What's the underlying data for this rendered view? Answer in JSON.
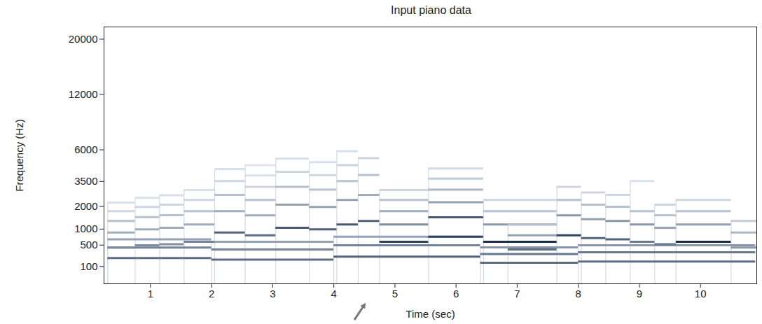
{
  "chart_data": {
    "type": "spectrogram",
    "title": "Input piano data",
    "x_label": "Time (sec)",
    "y_label": "Frequency (Hz)",
    "xlim": [
      0.24,
      10.92
    ],
    "xticks": [
      1,
      2,
      3,
      4,
      5,
      6,
      7,
      8,
      9,
      10
    ],
    "ylim": [
      0,
      22050
    ],
    "yticks": [
      100,
      500,
      1000,
      2000,
      3500,
      6000,
      12000,
      20000
    ],
    "notes": [
      {
        "start": 0.3,
        "end": 2.0,
        "partials": [
          [
            220,
            0.7
          ],
          [
            440,
            0.6
          ],
          [
            660,
            0.45
          ]
        ]
      },
      {
        "start": 2.0,
        "end": 4.0,
        "partials": [
          [
            196,
            0.7
          ],
          [
            392,
            0.6
          ],
          [
            588,
            0.45
          ]
        ]
      },
      {
        "start": 4.0,
        "end": 6.4,
        "partials": [
          [
            247,
            0.75
          ],
          [
            494,
            0.6
          ],
          [
            741,
            0.45
          ]
        ]
      },
      {
        "start": 6.4,
        "end": 8.0,
        "partials": [
          [
            147,
            0.7
          ],
          [
            294,
            0.65
          ],
          [
            441,
            0.5
          ]
        ]
      },
      {
        "start": 8.0,
        "end": 10.9,
        "partials": [
          [
            165,
            0.7
          ],
          [
            330,
            0.65
          ],
          [
            495,
            0.5
          ]
        ]
      },
      {
        "start": 0.3,
        "end": 0.75,
        "partials": [
          [
            440,
            0.55
          ],
          [
            880,
            0.4
          ],
          [
            1320,
            0.3
          ],
          [
            1760,
            0.2
          ],
          [
            2200,
            0.15
          ]
        ]
      },
      {
        "start": 0.75,
        "end": 1.15,
        "partials": [
          [
            494,
            0.55
          ],
          [
            988,
            0.4
          ],
          [
            1482,
            0.3
          ],
          [
            1976,
            0.2
          ],
          [
            2470,
            0.15
          ]
        ]
      },
      {
        "start": 1.15,
        "end": 1.55,
        "partials": [
          [
            523,
            0.55
          ],
          [
            1046,
            0.4
          ],
          [
            1569,
            0.3
          ],
          [
            2092,
            0.2
          ],
          [
            2615,
            0.15
          ]
        ]
      },
      {
        "start": 1.55,
        "end": 2.05,
        "partials": [
          [
            587,
            0.6
          ],
          [
            1174,
            0.4
          ],
          [
            1761,
            0.3
          ],
          [
            2348,
            0.2
          ],
          [
            2935,
            0.15
          ]
        ]
      },
      {
        "start": 2.05,
        "end": 2.55,
        "partials": [
          [
            880,
            0.75
          ],
          [
            1760,
            0.4
          ],
          [
            2640,
            0.3
          ],
          [
            3520,
            0.2
          ],
          [
            4400,
            0.15
          ]
        ]
      },
      {
        "start": 2.55,
        "end": 3.05,
        "partials": [
          [
            784,
            0.7
          ],
          [
            1568,
            0.4
          ],
          [
            2352,
            0.3
          ],
          [
            3136,
            0.2
          ],
          [
            3920,
            0.15
          ],
          [
            4704,
            0.12
          ]
        ]
      },
      {
        "start": 3.05,
        "end": 3.6,
        "partials": [
          [
            1047,
            0.8
          ],
          [
            2094,
            0.45
          ],
          [
            3141,
            0.3
          ],
          [
            4188,
            0.2
          ],
          [
            5235,
            0.15
          ]
        ]
      },
      {
        "start": 3.6,
        "end": 4.05,
        "partials": [
          [
            988,
            0.75
          ],
          [
            1976,
            0.45
          ],
          [
            2964,
            0.3
          ],
          [
            3952,
            0.2
          ],
          [
            4940,
            0.15
          ]
        ]
      },
      {
        "start": 4.05,
        "end": 4.4,
        "partials": [
          [
            1175,
            0.8
          ],
          [
            2350,
            0.45
          ],
          [
            3525,
            0.3
          ],
          [
            4700,
            0.2
          ],
          [
            5875,
            0.15
          ]
        ]
      },
      {
        "start": 4.4,
        "end": 4.75,
        "partials": [
          [
            1319,
            0.75
          ],
          [
            2638,
            0.4
          ],
          [
            3957,
            0.3
          ],
          [
            5276,
            0.2
          ]
        ]
      },
      {
        "start": 4.75,
        "end": 5.55,
        "partials": [
          [
            587,
            0.9
          ],
          [
            1175,
            0.55
          ],
          [
            1760,
            0.4
          ],
          [
            2349,
            0.3
          ],
          [
            2937,
            0.2
          ]
        ]
      },
      {
        "start": 5.55,
        "end": 6.45,
        "partials": [
          [
            740,
            0.9
          ],
          [
            1480,
            0.8
          ],
          [
            2220,
            0.45
          ],
          [
            2960,
            0.35
          ],
          [
            3700,
            0.25
          ],
          [
            4440,
            0.18
          ]
        ]
      },
      {
        "start": 6.45,
        "end": 7.65,
        "partials": [
          [
            587,
            1.0
          ],
          [
            1175,
            0.5
          ],
          [
            1760,
            0.3
          ],
          [
            2349,
            0.2
          ]
        ]
      },
      {
        "start": 6.85,
        "end": 7.65,
        "partials": [
          [
            392,
            0.7
          ],
          [
            784,
            0.45
          ],
          [
            1176,
            0.3
          ]
        ]
      },
      {
        "start": 7.65,
        "end": 8.05,
        "partials": [
          [
            784,
            0.9
          ],
          [
            1568,
            0.5
          ],
          [
            2352,
            0.3
          ],
          [
            3136,
            0.2
          ]
        ]
      },
      {
        "start": 8.05,
        "end": 8.45,
        "partials": [
          [
            698,
            0.75
          ],
          [
            1396,
            0.45
          ],
          [
            2094,
            0.3
          ],
          [
            2792,
            0.2
          ]
        ]
      },
      {
        "start": 8.45,
        "end": 8.85,
        "partials": [
          [
            659,
            0.75
          ],
          [
            1319,
            0.5
          ],
          [
            1978,
            0.3
          ],
          [
            2637,
            0.2
          ]
        ]
      },
      {
        "start": 8.85,
        "end": 9.25,
        "partials": [
          [
            587,
            0.65
          ],
          [
            1175,
            0.5
          ],
          [
            1760,
            0.3
          ],
          [
            3520,
            0.15
          ]
        ]
      },
      {
        "start": 9.25,
        "end": 9.6,
        "partials": [
          [
            523,
            0.65
          ],
          [
            1046,
            0.45
          ],
          [
            1569,
            0.3
          ],
          [
            2092,
            0.2
          ]
        ]
      },
      {
        "start": 9.6,
        "end": 10.5,
        "partials": [
          [
            587,
            1.0
          ],
          [
            1175,
            0.45
          ],
          [
            1760,
            0.3
          ],
          [
            2349,
            0.2
          ]
        ]
      },
      {
        "start": 10.5,
        "end": 10.92,
        "partials": [
          [
            440,
            0.5
          ],
          [
            880,
            0.35
          ],
          [
            1320,
            0.25
          ]
        ]
      }
    ]
  }
}
